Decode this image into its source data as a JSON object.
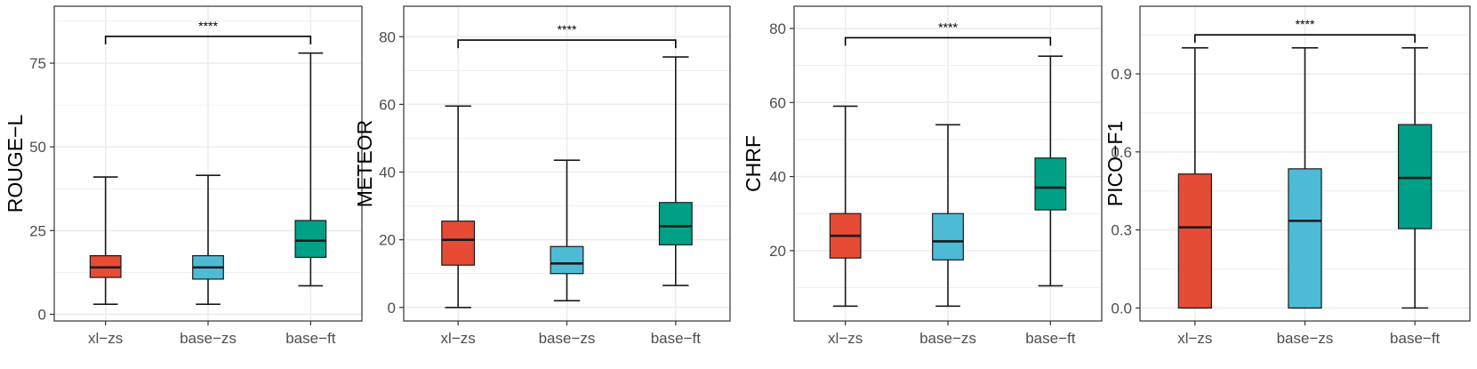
{
  "colors": {
    "xl-zs": "#E64B35",
    "base-zs": "#4DBBD5",
    "base-ft": "#00A087",
    "panel_border": "#333333",
    "grid": "#EBEBEB",
    "box_line": "#1a1a1a"
  },
  "chart_data": [
    {
      "type": "box",
      "ylabel": "ROUGE−L",
      "categories": [
        "xl−zs",
        "base−zs",
        "base−ft"
      ],
      "ylim": [
        -2,
        92
      ],
      "yticks": [
        0,
        25,
        50,
        75
      ],
      "boxes": [
        {
          "category": "xl−zs",
          "min": 3,
          "q1": 11,
          "median": 14,
          "q3": 17.5,
          "max": 41
        },
        {
          "category": "base−zs",
          "min": 3,
          "q1": 10.5,
          "median": 14,
          "q3": 17.5,
          "max": 41.5
        },
        {
          "category": "base−ft",
          "min": 8.5,
          "q1": 17,
          "median": 22,
          "q3": 28,
          "max": 78
        }
      ],
      "significance": {
        "from": "xl−zs",
        "to": "base−ft",
        "y": 83,
        "label": "****"
      }
    },
    {
      "type": "box",
      "ylabel": "METEOR",
      "categories": [
        "xl−zs",
        "base−zs",
        "base−ft"
      ],
      "ylim": [
        -4,
        89
      ],
      "yticks": [
        0,
        20,
        40,
        60,
        80
      ],
      "boxes": [
        {
          "category": "xl−zs",
          "min": 0,
          "q1": 12.5,
          "median": 20,
          "q3": 25.5,
          "max": 59.5
        },
        {
          "category": "base−zs",
          "min": 2,
          "q1": 10,
          "median": 13,
          "q3": 18,
          "max": 43.5
        },
        {
          "category": "base−ft",
          "min": 6.5,
          "q1": 18.5,
          "median": 24,
          "q3": 31,
          "max": 74
        }
      ],
      "significance": {
        "from": "xl−zs",
        "to": "base−ft",
        "y": 79,
        "label": "****"
      }
    },
    {
      "type": "box",
      "ylabel": "CHRF",
      "categories": [
        "xl−zs",
        "base−zs",
        "base−ft"
      ],
      "ylim": [
        1,
        86
      ],
      "yticks": [
        20,
        40,
        60,
        80
      ],
      "boxes": [
        {
          "category": "xl−zs",
          "min": 5,
          "q1": 18,
          "median": 24,
          "q3": 30,
          "max": 59
        },
        {
          "category": "base−zs",
          "min": 5,
          "q1": 17.5,
          "median": 22.5,
          "q3": 30,
          "max": 54
        },
        {
          "category": "base−ft",
          "min": 10.5,
          "q1": 31,
          "median": 37,
          "q3": 45,
          "max": 72.5
        }
      ],
      "significance": {
        "from": "xl−zs",
        "to": "base−ft",
        "y": 77.5,
        "label": "****"
      }
    },
    {
      "type": "box",
      "ylabel": "PICO−F1",
      "categories": [
        "xl−zs",
        "base−zs",
        "base−ft"
      ],
      "ylim": [
        -0.05,
        1.16
      ],
      "yticks": [
        0.0,
        0.3,
        0.6,
        0.9
      ],
      "tick_format": 1,
      "boxes": [
        {
          "category": "xl−zs",
          "min": 0,
          "q1": 0,
          "median": 0.31,
          "q3": 0.515,
          "max": 1.0
        },
        {
          "category": "base−zs",
          "min": 0,
          "q1": 0,
          "median": 0.335,
          "q3": 0.535,
          "max": 1.0
        },
        {
          "category": "base−ft",
          "min": 0,
          "q1": 0.305,
          "median": 0.5,
          "q3": 0.705,
          "max": 1.0
        }
      ],
      "significance": {
        "from": "xl−zs",
        "to": "base−ft",
        "y": 1.05,
        "label": "****"
      }
    }
  ]
}
